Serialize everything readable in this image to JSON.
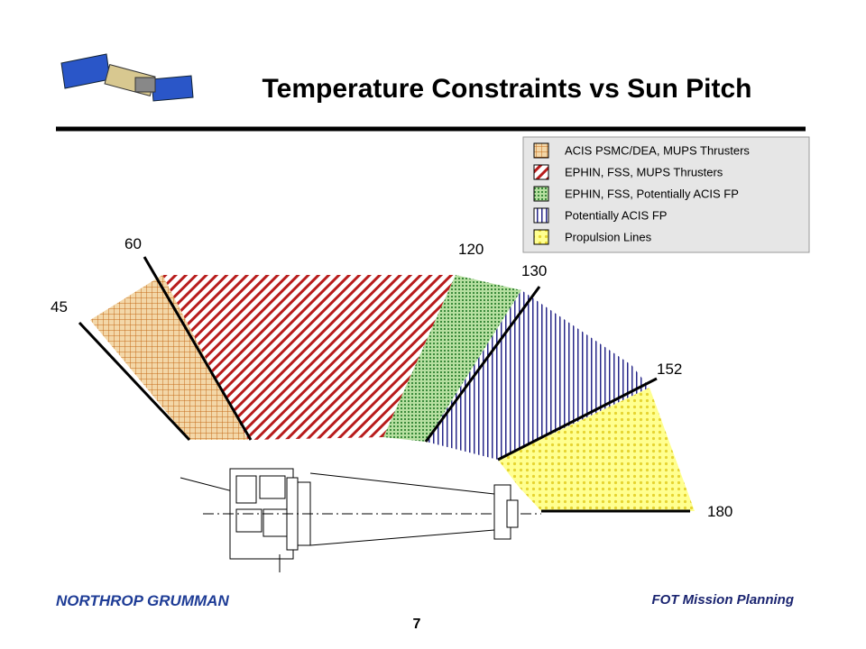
{
  "header": {
    "title": "Temperature Constraints vs Sun Pitch"
  },
  "legend": [
    {
      "label": "ACIS PSMC/DEA, MUPS Thrusters"
    },
    {
      "label": "EPHIN, FSS, MUPS Thrusters"
    },
    {
      "label": "EPHIN, FSS, Potentially ACIS FP"
    },
    {
      "label": "Potentially ACIS FP"
    },
    {
      "label": "Propulsion Lines"
    }
  ],
  "pitch_labels": [
    45,
    60,
    120,
    130,
    152,
    180
  ],
  "footer": {
    "company": "NORTHROP GRUMMAN",
    "section": "FOT Mission Planning",
    "page": 7
  }
}
